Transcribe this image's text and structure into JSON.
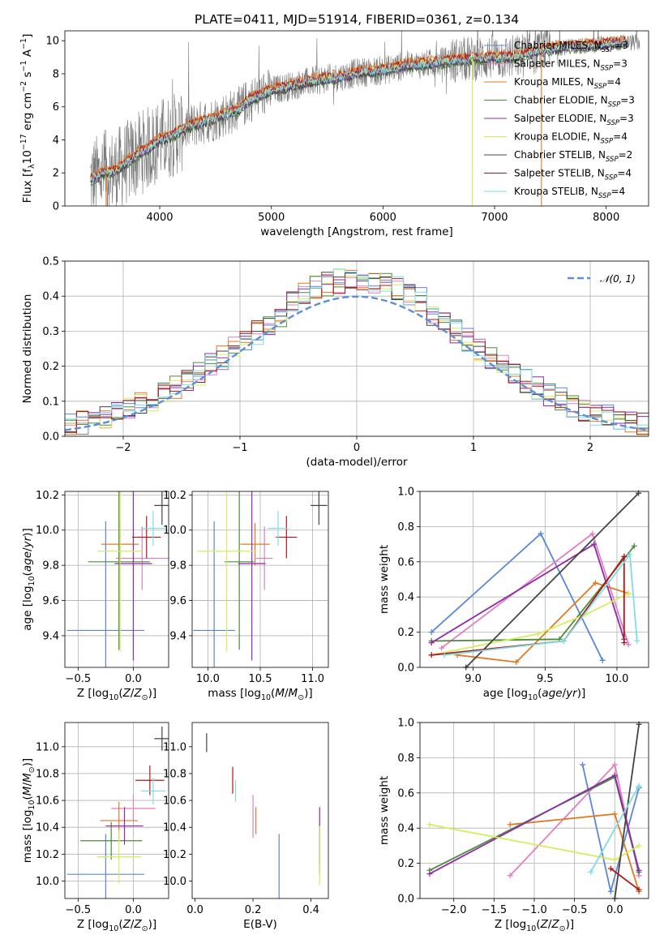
{
  "figure": {
    "title": "PLATE=0411, MJD=51914, FIBERID=0361, z=0.134"
  },
  "colors": {
    "Chabrier MILES": "#5b86d8",
    "Salpeter MILES": "#e27fbf",
    "Kroupa MILES": "#e07a22",
    "Chabrier ELODIE": "#4c8c3c",
    "Salpeter ELODIE": "#8e2aa8",
    "Kroupa ELODIE": "#d7ec5c",
    "Chabrier STELIB": "#444444",
    "Salpeter STELIB": "#b01818",
    "Kroupa STELIB": "#7fdde6",
    "data": "#7a7a7a",
    "gaussian": "#5b8fd8"
  },
  "legend_spectrum": [
    {
      "model": "Chabrier MILES",
      "pre": "Chabrier MILES, N",
      "sub": "SSP",
      "post": "=3"
    },
    {
      "model": "Salpeter MILES",
      "pre": "Salpeter MILES, N",
      "sub": "SSP",
      "post": "=3"
    },
    {
      "model": "Kroupa MILES",
      "pre": "Kroupa MILES, N",
      "sub": "SSP",
      "post": "=4"
    },
    {
      "model": "Chabrier ELODIE",
      "pre": "Chabrier ELODIE, N",
      "sub": "SSP",
      "post": "=3"
    },
    {
      "model": "Salpeter ELODIE",
      "pre": "Salpeter ELODIE, N",
      "sub": "SSP",
      "post": "=3"
    },
    {
      "model": "Kroupa ELODIE",
      "pre": "Kroupa ELODIE, N",
      "sub": "SSP",
      "post": "=4"
    },
    {
      "model": "Chabrier STELIB",
      "pre": "Chabrier STELIB, N",
      "sub": "SSP",
      "post": "=2"
    },
    {
      "model": "Salpeter STELIB",
      "pre": "Salpeter STELIB, N",
      "sub": "SSP",
      "post": "=4"
    },
    {
      "model": "Kroupa STELIB",
      "pre": "Kroupa STELIB, N",
      "sub": "SSP",
      "post": "=4"
    }
  ],
  "legend_hist": {
    "label": "𝒩(0, 1)"
  },
  "chart_data": [
    {
      "id": "spectrum",
      "type": "line",
      "xlabel": "wavelength [Angstrom, rest frame]",
      "ylabel": "Flux [f_λ 10^-17 erg cm^-2 s^-1 A^-1]",
      "xlim": [
        3150,
        8380
      ],
      "ylim": [
        0,
        10.6
      ],
      "xticks": [
        4000,
        5000,
        6000,
        7000,
        8000
      ],
      "yticks": [
        0,
        2,
        4,
        6,
        8,
        10
      ],
      "continuum": {
        "x": [
          3380,
          3500,
          3600,
          3700,
          3800,
          3900,
          4000,
          4100,
          4200,
          4300,
          4400,
          4500,
          4600,
          4700,
          4800,
          4900,
          5000,
          5200,
          5400,
          5600,
          5800,
          6000,
          6200,
          6400,
          6600,
          6800,
          7000,
          7200,
          7400,
          7600,
          7800,
          8000,
          8180
        ],
        "y": [
          1.6,
          2.0,
          2.1,
          2.6,
          3.1,
          3.5,
          4.0,
          4.2,
          4.6,
          4.9,
          5.1,
          5.3,
          5.6,
          5.8,
          6.4,
          6.7,
          7.0,
          7.3,
          7.6,
          7.8,
          8.1,
          8.2,
          8.5,
          8.6,
          8.8,
          8.9,
          9.0,
          9.0,
          9.4,
          9.6,
          9.7,
          9.8,
          9.9
        ]
      },
      "data_extra_x": [
        8200,
        8300
      ],
      "model_offsets": [
        0.1,
        -0.05,
        0.25,
        -0.2,
        -0.1,
        0.05,
        -0.15,
        0.15,
        0.0
      ]
    },
    {
      "id": "residual-histogram",
      "type": "bar",
      "xlabel": "(data-model)/error",
      "ylabel": "Normed distribution",
      "xlim": [
        -2.5,
        2.5
      ],
      "ylim": [
        0,
        0.5
      ],
      "xticks": [
        -2,
        -1,
        0,
        1,
        2
      ],
      "yticks": [
        0.0,
        0.1,
        0.2,
        0.3,
        0.4,
        0.5
      ],
      "bin_width": 0.1,
      "bin_start": -2.5,
      "gaussian": {
        "mean": 0,
        "sigma": 1
      }
    },
    {
      "id": "age-vs-Z",
      "type": "scatter",
      "xlabel": "Z [log10(Z/Z⊙)]",
      "ylabel": "age [log10(age/yr)]",
      "xlim": [
        -0.62,
        0.32
      ],
      "ylim": [
        9.22,
        10.22
      ],
      "xticks": [
        -0.5,
        0.0
      ],
      "yticks": [
        9.4,
        9.6,
        9.8,
        10.0,
        10.2
      ],
      "points": [
        {
          "model": "Chabrier MILES",
          "x": -0.25,
          "xerr": 0.35,
          "y": 9.43,
          "yerr": 0.62
        },
        {
          "model": "Salpeter MILES",
          "x": 0.08,
          "xerr": 0.24,
          "y": 9.84,
          "yerr": 0.18
        },
        {
          "model": "Kroupa MILES",
          "x": -0.12,
          "xerr": 0.17,
          "y": 9.92,
          "yerr": 0.12
        },
        {
          "model": "Chabrier ELODIE",
          "x": -0.13,
          "xerr": 0.28,
          "y": 9.82,
          "yerr": 0.5
        },
        {
          "model": "Salpeter ELODIE",
          "x": 0.0,
          "xerr": 0.17,
          "y": 9.81,
          "yerr": 0.55
        },
        {
          "model": "Kroupa ELODIE",
          "x": -0.12,
          "xerr": 0.2,
          "y": 9.88,
          "yerr": 0.57
        },
        {
          "model": "Chabrier STELIB",
          "x": 0.26,
          "xerr": 0.07,
          "y": 10.14,
          "yerr": 0.11
        },
        {
          "model": "Salpeter STELIB",
          "x": 0.12,
          "xerr": 0.13,
          "y": 9.96,
          "yerr": 0.12
        },
        {
          "model": "Kroupa STELIB",
          "x": 0.18,
          "xerr": 0.11,
          "y": 10.01,
          "yerr": 0.1
        }
      ]
    },
    {
      "id": "age-vs-mass",
      "type": "scatter",
      "xlabel": "mass [log10(M/M⊙)]",
      "ylabel": "",
      "xlim": [
        9.85,
        11.15
      ],
      "ylim": [
        9.22,
        10.22
      ],
      "xticks": [
        10.0,
        10.5,
        11.0
      ],
      "yticks": [
        9.4,
        9.6,
        9.8,
        10.0,
        10.2
      ],
      "points": [
        {
          "model": "Chabrier MILES",
          "x": 10.06,
          "xerr": 0.2,
          "y": 9.43,
          "yerr": 0.62
        },
        {
          "model": "Salpeter MILES",
          "x": 10.54,
          "xerr": 0.08,
          "y": 9.84,
          "yerr": 0.18
        },
        {
          "model": "Kroupa MILES",
          "x": 10.45,
          "xerr": 0.14,
          "y": 9.92,
          "yerr": 0.12
        },
        {
          "model": "Chabrier ELODIE",
          "x": 10.3,
          "xerr": 0.14,
          "y": 9.82,
          "yerr": 0.5
        },
        {
          "model": "Salpeter ELODIE",
          "x": 10.42,
          "xerr": 0.13,
          "y": 9.81,
          "yerr": 0.55
        },
        {
          "model": "Kroupa ELODIE",
          "x": 10.18,
          "xerr": 0.28,
          "y": 9.88,
          "yerr": 0.57
        },
        {
          "model": "Chabrier STELIB",
          "x": 11.06,
          "xerr": 0.08,
          "y": 10.14,
          "yerr": 0.11
        },
        {
          "model": "Salpeter STELIB",
          "x": 10.75,
          "xerr": 0.1,
          "y": 9.96,
          "yerr": 0.12
        },
        {
          "model": "Kroupa STELIB",
          "x": 10.67,
          "xerr": 0.1,
          "y": 10.01,
          "yerr": 0.1
        }
      ]
    },
    {
      "id": "weight-vs-age",
      "type": "line",
      "xlabel": "age [log10(age/yr)]",
      "ylabel": "mass weight",
      "xlim": [
        8.63,
        10.22
      ],
      "ylim": [
        0,
        1.0
      ],
      "xticks": [
        9.0,
        9.5,
        10.0
      ],
      "yticks": [
        0.0,
        0.2,
        0.4,
        0.6,
        0.8,
        1.0
      ],
      "series": [
        {
          "model": "Chabrier MILES",
          "x": [
            8.71,
            9.47,
            9.9
          ],
          "y": [
            0.2,
            0.76,
            0.04
          ]
        },
        {
          "model": "Salpeter MILES",
          "x": [
            8.78,
            9.83,
            10.08
          ],
          "y": [
            0.11,
            0.76,
            0.13
          ]
        },
        {
          "model": "Kroupa MILES",
          "x": [
            8.89,
            9.3,
            9.85,
            10.08
          ],
          "y": [
            0.07,
            0.03,
            0.48,
            0.42
          ]
        },
        {
          "model": "Chabrier ELODIE",
          "x": [
            8.71,
            9.6,
            10.12
          ],
          "y": [
            0.15,
            0.16,
            0.69
          ]
        },
        {
          "model": "Salpeter ELODIE",
          "x": [
            8.71,
            9.84,
            10.05
          ],
          "y": [
            0.14,
            0.7,
            0.16
          ]
        },
        {
          "model": "Kroupa ELODIE",
          "x": [
            8.71,
            9.45,
            9.78,
            10.08
          ],
          "y": [
            0.07,
            0.19,
            0.3,
            0.42
          ]
        },
        {
          "model": "Chabrier STELIB",
          "x": [
            8.95,
            10.15
          ],
          "y": [
            0.0,
            0.99
          ]
        },
        {
          "model": "Salpeter STELIB",
          "x": [
            8.71,
            9.63,
            10.05,
            10.05
          ],
          "y": [
            0.07,
            0.15,
            0.63,
            0.14
          ]
        },
        {
          "model": "Kroupa STELIB",
          "x": [
            8.8,
            9.63,
            10.09,
            10.14
          ],
          "y": [
            0.07,
            0.15,
            0.64,
            0.15
          ]
        }
      ]
    },
    {
      "id": "mass-vs-Z",
      "type": "scatter",
      "xlabel": "Z [log10(Z/Z⊙)]",
      "ylabel": "mass [log10(M/M⊙)]",
      "xlim": [
        -0.62,
        0.32
      ],
      "ylim": [
        9.87,
        11.18
      ],
      "xticks": [
        -0.5,
        0.0
      ],
      "yticks": [
        10.0,
        10.2,
        10.4,
        10.6,
        10.8,
        11.0
      ],
      "points": [
        {
          "model": "Chabrier MILES",
          "x": -0.25,
          "xerr": 0.35,
          "y": 10.05,
          "yerr": 0.3
        },
        {
          "model": "Salpeter MILES",
          "x": 0.0,
          "xerr": 0.2,
          "y": 10.54,
          "yerr": 0.1
        },
        {
          "model": "Kroupa MILES",
          "x": -0.13,
          "xerr": 0.17,
          "y": 10.45,
          "yerr": 0.14
        },
        {
          "model": "Chabrier ELODIE",
          "x": -0.2,
          "xerr": 0.28,
          "y": 10.3,
          "yerr": 0.14
        },
        {
          "model": "Salpeter ELODIE",
          "x": -0.08,
          "xerr": 0.17,
          "y": 10.41,
          "yerr": 0.14
        },
        {
          "model": "Kroupa ELODIE",
          "x": -0.13,
          "xerr": 0.2,
          "y": 10.18,
          "yerr": 0.2
        },
        {
          "model": "Chabrier STELIB",
          "x": 0.26,
          "xerr": 0.07,
          "y": 11.06,
          "yerr": 0.09
        },
        {
          "model": "Salpeter STELIB",
          "x": 0.15,
          "xerr": 0.13,
          "y": 10.75,
          "yerr": 0.11
        },
        {
          "model": "Kroupa STELIB",
          "x": 0.18,
          "xerr": 0.11,
          "y": 10.67,
          "yerr": 0.1
        }
      ]
    },
    {
      "id": "mass-vs-EBV",
      "type": "scatter",
      "xlabel": "E(B-V)",
      "ylabel": "",
      "xlim": [
        -0.01,
        0.46
      ],
      "ylim": [
        9.87,
        11.18
      ],
      "xticks": [
        0.0,
        0.2,
        0.4
      ],
      "yticks": [
        10.0,
        10.2,
        10.4,
        10.6,
        10.8,
        11.0
      ],
      "points": [
        {
          "model": "Chabrier MILES",
          "x": 0.29,
          "y": 10.05,
          "yerr": 0.3
        },
        {
          "model": "Salpeter MILES",
          "x": 0.2,
          "y": 10.48,
          "yerr": 0.16
        },
        {
          "model": "Kroupa MILES",
          "x": 0.21,
          "y": 10.45,
          "yerr": 0.1
        },
        {
          "model": "Chabrier ELODIE",
          "x": 0.43,
          "y": 10.23,
          "yerr": 0.18
        },
        {
          "model": "Salpeter ELODIE",
          "x": 0.43,
          "y": 10.34,
          "yerr": 0.21
        },
        {
          "model": "Kroupa ELODIE",
          "x": 0.43,
          "y": 10.19,
          "yerr": 0.22
        },
        {
          "model": "Chabrier STELIB",
          "x": 0.04,
          "y": 11.03,
          "yerr": 0.07
        },
        {
          "model": "Salpeter STELIB",
          "x": 0.13,
          "y": 10.75,
          "yerr": 0.1
        },
        {
          "model": "Kroupa STELIB",
          "x": 0.14,
          "y": 10.67,
          "yerr": 0.08
        }
      ]
    },
    {
      "id": "weight-vs-Z",
      "type": "line",
      "xlabel": "Z [log10(Z/Z⊙)]",
      "ylabel": "mass weight",
      "xlim": [
        -2.42,
        0.42
      ],
      "ylim": [
        0,
        1.0
      ],
      "xticks": [
        -2.0,
        -1.5,
        -1.0,
        -0.5,
        0.0
      ],
      "yticks": [
        0.0,
        0.2,
        0.4,
        0.6,
        0.8,
        1.0
      ],
      "series": [
        {
          "model": "Chabrier MILES",
          "x": [
            -0.4,
            -0.05,
            0.3
          ],
          "y": [
            0.76,
            0.04,
            0.63
          ]
        },
        {
          "model": "Salpeter MILES",
          "x": [
            -1.3,
            0.0,
            0.3
          ],
          "y": [
            0.13,
            0.76,
            0.13
          ]
        },
        {
          "model": "Kroupa MILES",
          "x": [
            -1.3,
            0.0,
            0.3
          ],
          "y": [
            0.42,
            0.48,
            0.04
          ]
        },
        {
          "model": "Chabrier ELODIE",
          "x": [
            -2.3,
            0.0,
            0.3
          ],
          "y": [
            0.16,
            0.69,
            0.15
          ]
        },
        {
          "model": "Salpeter ELODIE",
          "x": [
            -2.3,
            0.0,
            0.3
          ],
          "y": [
            0.14,
            0.7,
            0.16
          ]
        },
        {
          "model": "Kroupa ELODIE",
          "x": [
            -2.3,
            0.0,
            0.3
          ],
          "y": [
            0.42,
            0.22,
            0.3
          ]
        },
        {
          "model": "Chabrier STELIB",
          "x": [
            0.0,
            0.3
          ],
          "y": [
            0.0,
            0.99
          ]
        },
        {
          "model": "Salpeter STELIB",
          "x": [
            -0.05,
            0.3
          ],
          "y": [
            0.17,
            0.05
          ]
        },
        {
          "model": "Kroupa STELIB",
          "x": [
            -0.3,
            0.3
          ],
          "y": [
            0.15,
            0.64
          ]
        }
      ]
    }
  ]
}
